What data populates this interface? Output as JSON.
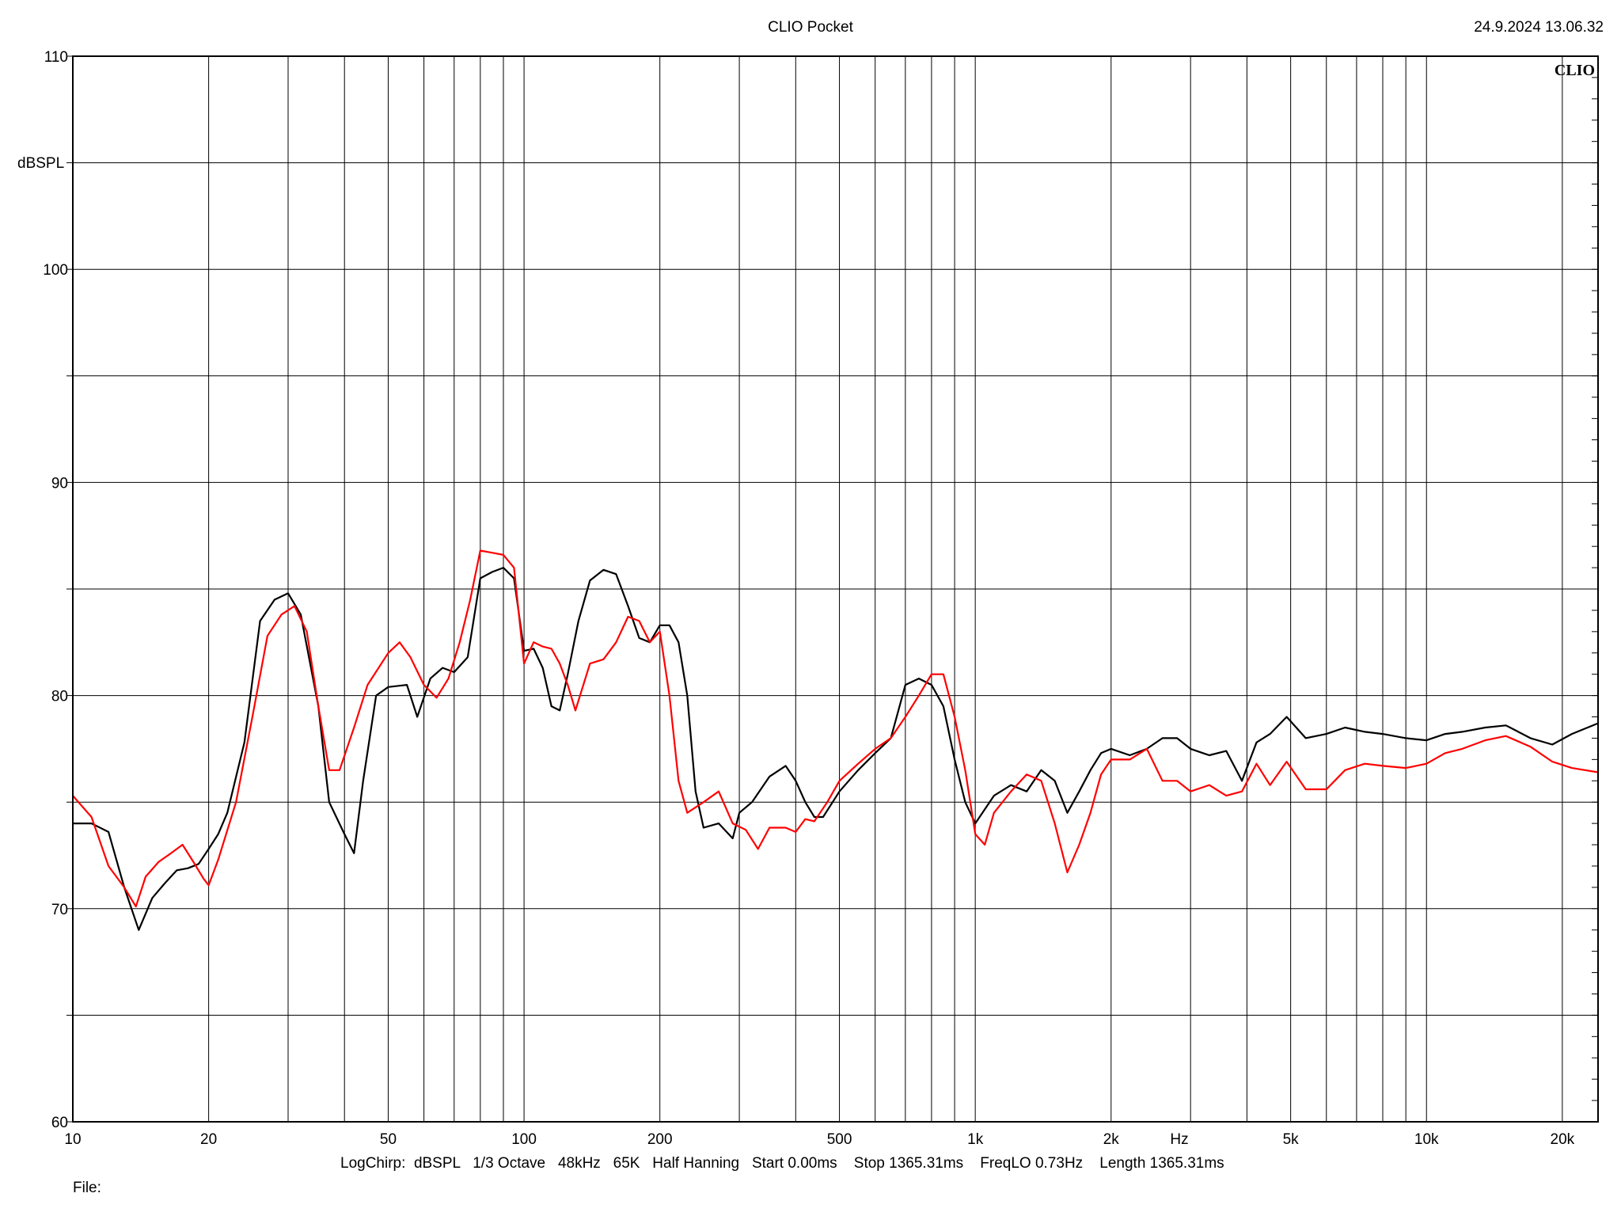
{
  "header": {
    "title": "CLIO Pocket",
    "timestamp": "24.9.2024 13.06.32",
    "brand": "CLIO"
  },
  "footer": {
    "settings": "LogChirp:  dBSPL   1/3 Octave   48kHz   65K   Half Hanning   Start 0.00ms    Stop 1365.31ms    FreqLO 0.73Hz    Length 1365.31ms",
    "file_label": "File:"
  },
  "colors": {
    "series_1": "#000000",
    "series_2": "#ff0000",
    "grid": "#000000",
    "background": "#ffffff"
  },
  "chart_data": {
    "type": "line",
    "title": "CLIO Pocket",
    "xlabel": "Hz",
    "ylabel": "dBSPL",
    "xscale": "log",
    "xlim": [
      10,
      24000
    ],
    "ylim": [
      60,
      110
    ],
    "grid": true,
    "x_ticks": [
      {
        "v": 10,
        "label": "10"
      },
      {
        "v": 20,
        "label": "20"
      },
      {
        "v": 50,
        "label": "50"
      },
      {
        "v": 100,
        "label": "100"
      },
      {
        "v": 200,
        "label": "200"
      },
      {
        "v": 500,
        "label": "500"
      },
      {
        "v": 1000,
        "label": "1k"
      },
      {
        "v": 2000,
        "label": "2k"
      },
      {
        "v": 5000,
        "label": "5k"
      },
      {
        "v": 10000,
        "label": "10k"
      },
      {
        "v": 20000,
        "label": "20k"
      }
    ],
    "x_minor_grid": [
      30,
      40,
      60,
      70,
      80,
      90,
      300,
      400,
      600,
      700,
      800,
      900,
      3000,
      4000,
      6000,
      7000,
      8000,
      9000
    ],
    "y_ticks": [
      {
        "v": 60,
        "label": "60"
      },
      {
        "v": 70,
        "label": "70"
      },
      {
        "v": 80,
        "label": "80"
      },
      {
        "v": 90,
        "label": "90"
      },
      {
        "v": 100,
        "label": "100"
      },
      {
        "v": 110,
        "label": "110"
      }
    ],
    "y_grid": [
      60,
      65,
      70,
      75,
      80,
      85,
      90,
      95,
      100,
      105,
      110
    ],
    "series": [
      {
        "color": "#000000",
        "points": [
          [
            10,
            74.0
          ],
          [
            11,
            74.0
          ],
          [
            12,
            73.6
          ],
          [
            13,
            71.0
          ],
          [
            14,
            69.0
          ],
          [
            15,
            70.5
          ],
          [
            16,
            71.2
          ],
          [
            17,
            71.8
          ],
          [
            18,
            71.9
          ],
          [
            19,
            72.1
          ],
          [
            20,
            72.8
          ],
          [
            21,
            73.5
          ],
          [
            22,
            74.5
          ],
          [
            24,
            77.8
          ],
          [
            26,
            83.5
          ],
          [
            28,
            84.5
          ],
          [
            30,
            84.8
          ],
          [
            32,
            83.8
          ],
          [
            35,
            79.5
          ],
          [
            37,
            75.0
          ],
          [
            40,
            73.5
          ],
          [
            42,
            72.6
          ],
          [
            44,
            76.0
          ],
          [
            47,
            80.0
          ],
          [
            50,
            80.4
          ],
          [
            55,
            80.5
          ],
          [
            58,
            79.0
          ],
          [
            62,
            80.8
          ],
          [
            66,
            81.3
          ],
          [
            70,
            81.1
          ],
          [
            75,
            81.8
          ],
          [
            80,
            85.5
          ],
          [
            85,
            85.8
          ],
          [
            90,
            86.0
          ],
          [
            95,
            85.5
          ],
          [
            100,
            82.1
          ],
          [
            105,
            82.2
          ],
          [
            110,
            81.3
          ],
          [
            115,
            79.5
          ],
          [
            120,
            79.3
          ],
          [
            125,
            81.0
          ],
          [
            132,
            83.5
          ],
          [
            140,
            85.4
          ],
          [
            150,
            85.9
          ],
          [
            160,
            85.7
          ],
          [
            170,
            84.2
          ],
          [
            180,
            82.7
          ],
          [
            190,
            82.5
          ],
          [
            200,
            83.3
          ],
          [
            210,
            83.3
          ],
          [
            220,
            82.5
          ],
          [
            230,
            80.0
          ],
          [
            240,
            75.5
          ],
          [
            250,
            73.8
          ],
          [
            270,
            74.0
          ],
          [
            290,
            73.3
          ],
          [
            300,
            74.5
          ],
          [
            320,
            75.0
          ],
          [
            350,
            76.2
          ],
          [
            380,
            76.7
          ],
          [
            400,
            76.0
          ],
          [
            420,
            75.0
          ],
          [
            440,
            74.3
          ],
          [
            460,
            74.3
          ],
          [
            500,
            75.5
          ],
          [
            550,
            76.5
          ],
          [
            600,
            77.3
          ],
          [
            650,
            78.0
          ],
          [
            700,
            80.5
          ],
          [
            750,
            80.8
          ],
          [
            800,
            80.5
          ],
          [
            850,
            79.5
          ],
          [
            900,
            77.0
          ],
          [
            950,
            75.0
          ],
          [
            1000,
            74.0
          ],
          [
            1100,
            75.3
          ],
          [
            1200,
            75.8
          ],
          [
            1300,
            75.5
          ],
          [
            1400,
            76.5
          ],
          [
            1500,
            76.0
          ],
          [
            1600,
            74.5
          ],
          [
            1700,
            75.5
          ],
          [
            1800,
            76.5
          ],
          [
            1900,
            77.3
          ],
          [
            2000,
            77.5
          ],
          [
            2200,
            77.2
          ],
          [
            2400,
            77.5
          ],
          [
            2600,
            78.0
          ],
          [
            2800,
            78.0
          ],
          [
            3000,
            77.5
          ],
          [
            3300,
            77.2
          ],
          [
            3600,
            77.4
          ],
          [
            3900,
            76.0
          ],
          [
            4200,
            77.8
          ],
          [
            4500,
            78.2
          ],
          [
            4900,
            79.0
          ],
          [
            5400,
            78.0
          ],
          [
            6000,
            78.2
          ],
          [
            6600,
            78.5
          ],
          [
            7300,
            78.3
          ],
          [
            8000,
            78.2
          ],
          [
            9000,
            78.0
          ],
          [
            10000,
            77.9
          ],
          [
            11000,
            78.2
          ],
          [
            12000,
            78.3
          ],
          [
            13500,
            78.5
          ],
          [
            15000,
            78.6
          ],
          [
            17000,
            78.0
          ],
          [
            19000,
            77.7
          ],
          [
            21000,
            78.2
          ],
          [
            24000,
            78.7
          ]
        ]
      },
      {
        "color": "#ff0000",
        "points": [
          [
            10,
            75.3
          ],
          [
            11,
            74.3
          ],
          [
            12,
            72.0
          ],
          [
            13,
            71.0
          ],
          [
            13.8,
            70.1
          ],
          [
            14.5,
            71.5
          ],
          [
            15.5,
            72.2
          ],
          [
            16.5,
            72.6
          ],
          [
            17.5,
            73.0
          ],
          [
            18.5,
            72.2
          ],
          [
            19.5,
            71.4
          ],
          [
            20,
            71.1
          ],
          [
            21,
            72.3
          ],
          [
            23,
            75.0
          ],
          [
            25,
            79.0
          ],
          [
            27,
            82.8
          ],
          [
            29,
            83.8
          ],
          [
            31,
            84.2
          ],
          [
            33,
            83.0
          ],
          [
            35,
            79.5
          ],
          [
            37,
            76.5
          ],
          [
            39,
            76.5
          ],
          [
            42,
            78.5
          ],
          [
            45,
            80.5
          ],
          [
            50,
            82.0
          ],
          [
            53,
            82.5
          ],
          [
            56,
            81.8
          ],
          [
            60,
            80.5
          ],
          [
            64,
            79.9
          ],
          [
            68,
            80.8
          ],
          [
            72,
            82.5
          ],
          [
            76,
            84.5
          ],
          [
            80,
            86.8
          ],
          [
            85,
            86.7
          ],
          [
            90,
            86.6
          ],
          [
            95,
            86.0
          ],
          [
            100,
            81.5
          ],
          [
            105,
            82.5
          ],
          [
            110,
            82.3
          ],
          [
            115,
            82.2
          ],
          [
            120,
            81.5
          ],
          [
            125,
            80.5
          ],
          [
            130,
            79.3
          ],
          [
            140,
            81.5
          ],
          [
            150,
            81.7
          ],
          [
            160,
            82.5
          ],
          [
            170,
            83.7
          ],
          [
            180,
            83.5
          ],
          [
            190,
            82.5
          ],
          [
            200,
            83.0
          ],
          [
            210,
            80.0
          ],
          [
            220,
            76.0
          ],
          [
            230,
            74.5
          ],
          [
            250,
            75.0
          ],
          [
            270,
            75.5
          ],
          [
            290,
            74.0
          ],
          [
            310,
            73.7
          ],
          [
            330,
            72.8
          ],
          [
            350,
            73.8
          ],
          [
            380,
            73.8
          ],
          [
            400,
            73.6
          ],
          [
            420,
            74.2
          ],
          [
            440,
            74.1
          ],
          [
            470,
            75.0
          ],
          [
            500,
            76.0
          ],
          [
            550,
            76.8
          ],
          [
            600,
            77.5
          ],
          [
            650,
            78.0
          ],
          [
            700,
            79.0
          ],
          [
            750,
            80.0
          ],
          [
            800,
            81.0
          ],
          [
            850,
            81.0
          ],
          [
            900,
            79.0
          ],
          [
            950,
            76.5
          ],
          [
            1000,
            73.5
          ],
          [
            1050,
            73.0
          ],
          [
            1100,
            74.5
          ],
          [
            1200,
            75.5
          ],
          [
            1300,
            76.3
          ],
          [
            1400,
            76.0
          ],
          [
            1500,
            74.0
          ],
          [
            1600,
            71.7
          ],
          [
            1700,
            73.0
          ],
          [
            1800,
            74.5
          ],
          [
            1900,
            76.3
          ],
          [
            2000,
            77.0
          ],
          [
            2200,
            77.0
          ],
          [
            2400,
            77.5
          ],
          [
            2600,
            76.0
          ],
          [
            2800,
            76.0
          ],
          [
            3000,
            75.5
          ],
          [
            3300,
            75.8
          ],
          [
            3600,
            75.3
          ],
          [
            3900,
            75.5
          ],
          [
            4200,
            76.8
          ],
          [
            4500,
            75.8
          ],
          [
            4900,
            76.9
          ],
          [
            5400,
            75.6
          ],
          [
            6000,
            75.6
          ],
          [
            6600,
            76.5
          ],
          [
            7300,
            76.8
          ],
          [
            8000,
            76.7
          ],
          [
            9000,
            76.6
          ],
          [
            10000,
            76.8
          ],
          [
            11000,
            77.3
          ],
          [
            12000,
            77.5
          ],
          [
            13500,
            77.9
          ],
          [
            15000,
            78.1
          ],
          [
            17000,
            77.6
          ],
          [
            19000,
            76.9
          ],
          [
            21000,
            76.6
          ],
          [
            24000,
            76.4
          ]
        ]
      }
    ]
  }
}
